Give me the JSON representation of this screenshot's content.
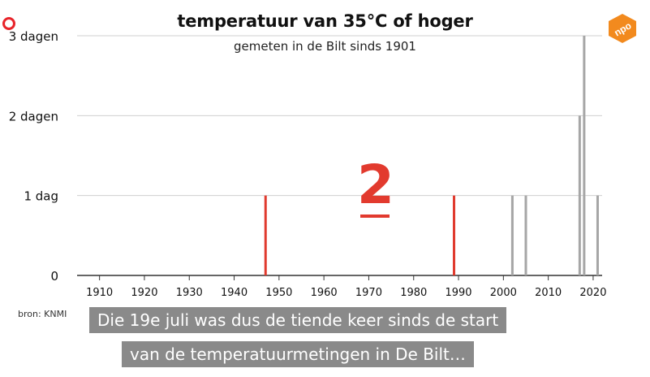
{
  "chart_data": {
    "type": "bar",
    "title": "temperatuur van 35°C of hoger",
    "subtitle": "gemeten in de Bilt sinds 1901",
    "source": "bron: KNMI",
    "xlim": [
      1905,
      2022
    ],
    "ylim": [
      0,
      3
    ],
    "x_ticks": [
      "1910",
      "1920",
      "1930",
      "1940",
      "1950",
      "1960",
      "1970",
      "1980",
      "1990",
      "2000",
      "2010",
      "2020"
    ],
    "y_ticks": [
      {
        "value": 0,
        "label": "0"
      },
      {
        "value": 1,
        "label": "1 dag"
      },
      {
        "value": 2,
        "label": "2 dagen"
      },
      {
        "value": 3,
        "label": "3 dagen"
      }
    ],
    "grid": "horizontal",
    "series": [
      {
        "color": "#e03a2e",
        "points": [
          [
            1947,
            1
          ],
          [
            1989,
            1
          ]
        ]
      },
      {
        "color": "#a6a6a6",
        "points": [
          [
            2002,
            1
          ],
          [
            2005,
            1
          ],
          [
            2017,
            2
          ],
          [
            2018,
            3
          ],
          [
            2021,
            1
          ]
        ]
      }
    ],
    "highlight_count": "2"
  },
  "captions": [
    "Die 19e juli was dus de tiende keer sinds de start",
    "van de temperatuurmetingen in De Bilt…"
  ],
  "logo_text": "npo"
}
